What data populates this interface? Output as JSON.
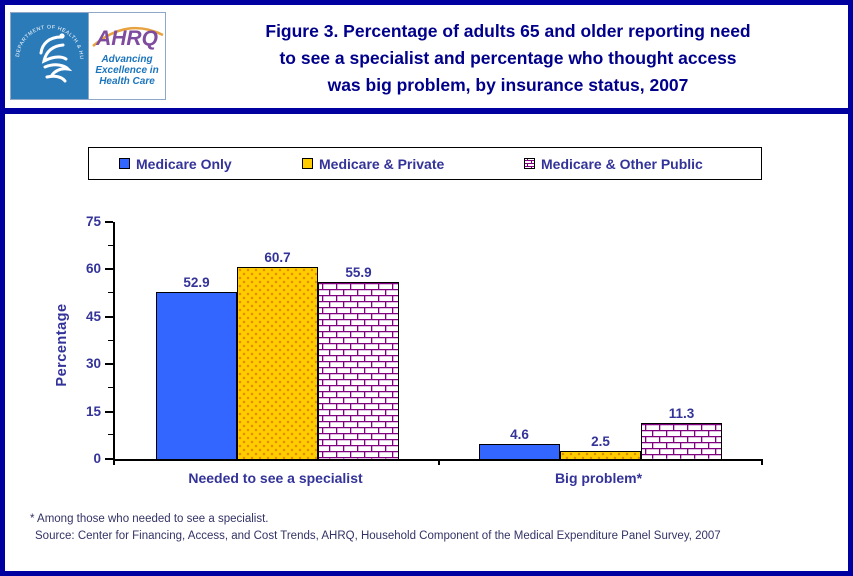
{
  "page": {
    "border_color": "#0000A0",
    "background": "#FFFFFF",
    "divider_color": "#0000A0"
  },
  "header": {
    "logo": {
      "hhs_ring_text": "DEPARTMENT OF HEALTH & HUMAN SERVICES • USA",
      "ahrq_acronym": "AHRQ",
      "ahrq_tagline_lines": [
        "Advancing",
        "Excellence in",
        "Health Care"
      ]
    },
    "title_lines": [
      "Figure 3. Percentage of adults 65 and older reporting need",
      "to see a specialist and percentage who thought access",
      "was big problem, by insurance status, 2007"
    ]
  },
  "legend": {
    "items": [
      {
        "label": "Medicare Only",
        "swatch": "solid-blue",
        "color": "#3366FF"
      },
      {
        "label": "Medicare & Private",
        "swatch": "solid-yellow",
        "color": "#FFCC00"
      },
      {
        "label": "Medicare & Other Public",
        "swatch": "purple-brick-pattern",
        "color": "#800080"
      }
    ]
  },
  "chart_data": {
    "type": "bar",
    "title": "Figure 3. Percentage of adults 65 and older reporting need to see a specialist and percentage who thought access was big problem, by insurance status, 2007",
    "categories": [
      "Needed to see a specialist",
      "Big problem*"
    ],
    "series": [
      {
        "name": "Medicare Only",
        "values": [
          52.9,
          4.6
        ],
        "color": "#3366FF",
        "pattern": "solid"
      },
      {
        "name": "Medicare & Private",
        "values": [
          60.7,
          2.5
        ],
        "color": "#FFCC00",
        "pattern": "orange-dots"
      },
      {
        "name": "Medicare & Other Public",
        "values": [
          55.9,
          11.3
        ],
        "color": "#800080",
        "pattern": "bricks-on-white"
      }
    ],
    "xlabel": "",
    "ylabel": "Percentage",
    "ylim": [
      0,
      75
    ],
    "yticks": [
      0,
      15,
      30,
      45,
      60,
      75
    ],
    "grid": false,
    "legend_position": "top",
    "bar_label_color": "#333399"
  },
  "footnotes": {
    "asterisk": "* Among those who needed to see a specialist.",
    "source": "Source: Center for Financing, Access, and Cost Trends, AHRQ, Household Component of the Medical Expenditure Panel Survey, 2007"
  }
}
